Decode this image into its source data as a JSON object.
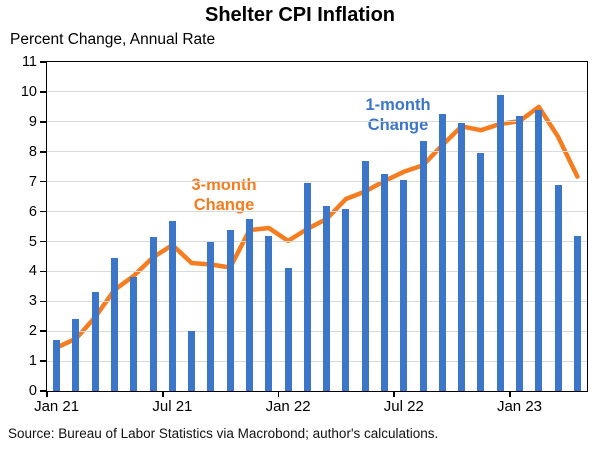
{
  "page": {
    "title": "Shelter CPI Inflation",
    "subtitle": "Percent Change, Annual Rate",
    "source_note": "Source: Bureau of Labor Statistics via Macrobond; author's calculations."
  },
  "colors": {
    "bar_blue": "#3b76c9",
    "line_orange": "#f57c1f",
    "gridline_gray": "#d9d9d9",
    "axis_black": "#000000",
    "background": "#ffffff"
  },
  "annotations": {
    "bar_series_label": [
      "1-month",
      "Change"
    ],
    "line_series_label": [
      "3-month",
      "Change"
    ]
  },
  "chart_data": {
    "type": "combo_bar_line",
    "title": "Shelter CPI Inflation",
    "ylabel": "Percent Change, Annual Rate",
    "ylim": [
      0,
      11
    ],
    "y_ticks": [
      0,
      1,
      2,
      3,
      4,
      5,
      6,
      7,
      8,
      9,
      10,
      11
    ],
    "grid": true,
    "legend_position": "inline-annotations",
    "x_tick_labels": [
      "Jan 21",
      "Jul 21",
      "Jan 22",
      "Jul 22",
      "Jan 23"
    ],
    "x_tick_month_indices": [
      0,
      6,
      12,
      18,
      24
    ],
    "categories": [
      "Jan 21",
      "Feb 21",
      "Mar 21",
      "Apr 21",
      "May 21",
      "Jun 21",
      "Jul 21",
      "Aug 21",
      "Sep 21",
      "Oct 21",
      "Nov 21",
      "Dec 21",
      "Jan 22",
      "Feb 22",
      "Mar 22",
      "Apr 22",
      "May 22",
      "Jun 22",
      "Jul 22",
      "Aug 22",
      "Sep 22",
      "Oct 22",
      "Nov 22",
      "Dec 22",
      "Jan 23",
      "Feb 23",
      "Mar 23",
      "Apr 23"
    ],
    "series": [
      {
        "name": "1-month Change",
        "type": "bar",
        "color": "#3b76c9",
        "values": [
          1.7,
          2.4,
          3.3,
          4.45,
          3.8,
          5.15,
          5.7,
          2.0,
          5.0,
          5.4,
          5.75,
          5.2,
          4.1,
          6.95,
          6.2,
          6.1,
          7.7,
          7.25,
          7.05,
          8.35,
          9.25,
          8.95,
          7.95,
          9.9,
          9.2,
          9.4,
          6.9,
          5.2
        ]
      },
      {
        "name": "3-month Change",
        "type": "line",
        "color": "#f57c1f",
        "values": [
          1.45,
          1.75,
          2.47,
          3.38,
          3.85,
          4.47,
          4.88,
          4.28,
          4.23,
          4.13,
          5.38,
          5.45,
          5.02,
          5.42,
          5.75,
          6.42,
          6.67,
          7.02,
          7.33,
          7.55,
          8.22,
          8.85,
          8.72,
          8.93,
          9.02,
          9.5,
          8.5,
          7.17
        ]
      }
    ]
  }
}
